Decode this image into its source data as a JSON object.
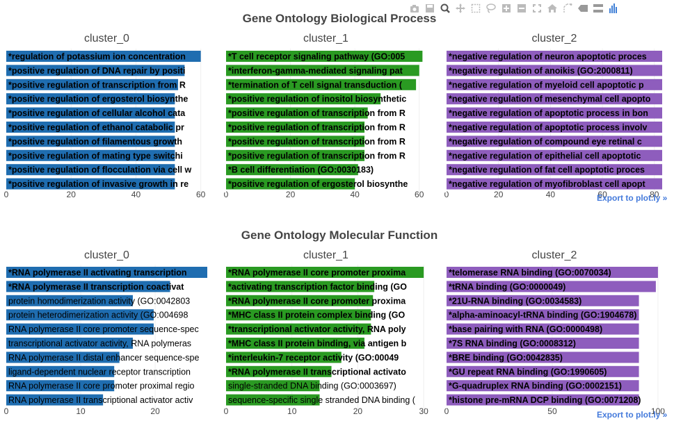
{
  "modebar": {
    "buttons": [
      "camera-icon",
      "save-icon",
      "zoom-icon",
      "pan-icon",
      "box-select-icon",
      "lasso-icon",
      "zoom-in-icon",
      "zoom-out-icon",
      "autoscale-icon",
      "home-icon",
      "spike-lines-icon",
      "hover-closest-icon",
      "hover-compare-icon",
      "plotly-logo-icon"
    ]
  },
  "export_label": "Export to plot.ly »",
  "colors": {
    "cluster_0": "#1f6db0",
    "cluster_1": "#2a9a22",
    "cluster_2": "#8e5dbd",
    "title": "#444444",
    "tick": "#444444"
  },
  "chart_data": [
    {
      "type": "bar",
      "orientation": "horizontal",
      "title": "Gene Ontology Biological Process",
      "panels": [
        {
          "name": "cluster_0",
          "xlim": [
            0,
            62
          ],
          "xticks": [
            0,
            20,
            40,
            60
          ],
          "xtick_labels": [
            "0",
            "20",
            "40",
            "60"
          ],
          "bars": [
            {
              "label": "*regulation of potassium ion concentration",
              "value": 60
            },
            {
              "label": "*positive regulation of DNA repair by positi",
              "value": 55
            },
            {
              "label": "*positive regulation of transcription from R",
              "value": 53
            },
            {
              "label": "*positive regulation of ergosterol biosynthe",
              "value": 52
            },
            {
              "label": "*positive regulation of cellular alcohol cata",
              "value": 52
            },
            {
              "label": "*positive regulation of ethanol catabolic pr",
              "value": 52
            },
            {
              "label": "*positive regulation of filamentous growth",
              "value": 52
            },
            {
              "label": "*positive regulation of mating type switchi",
              "value": 52
            },
            {
              "label": "*positive regulation of flocculation via cell w",
              "value": 52
            },
            {
              "label": "*positive regulation of invasive growth in re",
              "value": 52
            }
          ]
        },
        {
          "name": "cluster_1",
          "xlim": [
            0,
            62
          ],
          "xticks": [
            0,
            20,
            40,
            60
          ],
          "xtick_labels": [
            "0",
            "20",
            "40",
            "60"
          ],
          "bars": [
            {
              "label": "*T cell receptor signaling pathway (GO:005",
              "value": 61
            },
            {
              "label": "*interferon-gamma-mediated signaling pat",
              "value": 60
            },
            {
              "label": "*termination of T cell signal transduction (",
              "value": 59
            },
            {
              "label": "*positive regulation of inositol biosynthetic",
              "value": 48
            },
            {
              "label": "*positive regulation of transcription from R",
              "value": 44
            },
            {
              "label": "*positive regulation of transcription from R",
              "value": 43
            },
            {
              "label": "*positive regulation of transcription from R",
              "value": 43
            },
            {
              "label": "*positive regulation of transcription from R",
              "value": 43
            },
            {
              "label": "*B cell differentiation (GO:0030183)",
              "value": 41
            },
            {
              "label": "*positive regulation of ergosterol biosynthe",
              "value": 40
            }
          ]
        },
        {
          "name": "cluster_2",
          "xlim": [
            0,
            83
          ],
          "xticks": [
            0,
            20,
            40,
            60,
            80
          ],
          "xtick_labels": [
            "0",
            "20",
            "40",
            "60",
            "80"
          ],
          "bars": [
            {
              "label": "*negative regulation of neuron apoptotic proces",
              "value": 83
            },
            {
              "label": "*negative regulation of anoikis (GO:2000811)",
              "value": 83
            },
            {
              "label": "*negative regulation of myeloid cell apoptotic p",
              "value": 83
            },
            {
              "label": "*negative regulation of mesenchymal cell apopto",
              "value": 83
            },
            {
              "label": "*negative regulation of apoptotic process in bon",
              "value": 83
            },
            {
              "label": "*negative regulation of apoptotic process involv",
              "value": 83
            },
            {
              "label": "*negative regulation of compound eye retinal c",
              "value": 83
            },
            {
              "label": "*negative regulation of epithelial cell apoptotic",
              "value": 83
            },
            {
              "label": "*negative regulation of fat cell apoptotic proces",
              "value": 83
            },
            {
              "label": "*negative regulation of myofibroblast cell apopt",
              "value": 83
            }
          ]
        }
      ]
    },
    {
      "type": "bar",
      "orientation": "horizontal",
      "title": "Gene Ontology Molecular Function",
      "panels": [
        {
          "name": "cluster_0",
          "xlim": [
            0,
            27
          ],
          "xticks": [
            0,
            10,
            20
          ],
          "xtick_labels": [
            "0",
            "10",
            "20"
          ],
          "bars": [
            {
              "label": "*RNA polymerase II activating transcription",
              "value": 27.5,
              "bold": true
            },
            {
              "label": "*RNA polymerase II transcription coactivat",
              "value": 22,
              "bold": true
            },
            {
              "label": "protein homodimerization activity (GO:0042803",
              "value": 17,
              "bold": false
            },
            {
              "label": "protein heterodimerization activity (GO:004698",
              "value": 19.8,
              "bold": false
            },
            {
              "label": "RNA polymerase II core promoter sequence-spec",
              "value": 19.8,
              "bold": false
            },
            {
              "label": "transcriptional activator activity, RNA polymeras",
              "value": 17,
              "bold": false
            },
            {
              "label": "RNA polymerase II distal enhancer sequence-spe",
              "value": 15.2,
              "bold": false
            },
            {
              "label": "ligand-dependent nuclear receptor transcription",
              "value": 14.5,
              "bold": false
            },
            {
              "label": "RNA polymerase II core promoter proximal regio",
              "value": 14.5,
              "bold": false
            },
            {
              "label": "RNA polymerase II transcriptional activator activ",
              "value": 13,
              "bold": false
            }
          ]
        },
        {
          "name": "cluster_1",
          "xlim": [
            0,
            30.3
          ],
          "xticks": [
            0,
            10,
            20,
            30
          ],
          "xtick_labels": [
            "0",
            "10",
            "20",
            "30"
          ],
          "bars": [
            {
              "label": "*RNA polymerase II core promoter proxima",
              "value": 30,
              "bold": true
            },
            {
              "label": "*activating transcription factor binding (GO",
              "value": 22.5,
              "bold": true
            },
            {
              "label": "*RNA polymerase II core promoter proxima",
              "value": 22.3,
              "bold": true
            },
            {
              "label": "*MHC class II protein complex binding (GO",
              "value": 22,
              "bold": true
            },
            {
              "label": "*transcriptional activator activity, RNA poly",
              "value": 22,
              "bold": true
            },
            {
              "label": "*MHC class II protein binding, via antigen b",
              "value": 21,
              "bold": true
            },
            {
              "label": "*interleukin-7 receptor activity (GO:00049",
              "value": 17.5,
              "bold": true
            },
            {
              "label": "*RNA polymerase II transcriptional activato",
              "value": 16,
              "bold": true
            },
            {
              "label": "single-stranded DNA binding (GO:0003697)",
              "value": 14.2,
              "bold": false
            },
            {
              "label": "sequence-specific single stranded DNA binding (",
              "value": 14.2,
              "bold": false
            }
          ]
        },
        {
          "name": "cluster_2",
          "xlim": [
            0,
            102
          ],
          "xticks": [
            0,
            50,
            100
          ],
          "xtick_labels": [
            "0",
            "50",
            "100"
          ],
          "bars": [
            {
              "label": "*telomerase RNA binding (GO:0070034)",
              "value": 100,
              "bold": true
            },
            {
              "label": "*tRNA binding (GO:0000049)",
              "value": 99,
              "bold": true
            },
            {
              "label": "*21U-RNA binding (GO:0034583)",
              "value": 91,
              "bold": true
            },
            {
              "label": "*alpha-aminoacyl-tRNA binding (GO:1904678)",
              "value": 91,
              "bold": true
            },
            {
              "label": "*base pairing with RNA (GO:0000498)",
              "value": 91,
              "bold": true
            },
            {
              "label": "*7S RNA binding (GO:0008312)",
              "value": 91,
              "bold": true
            },
            {
              "label": "*BRE binding (GO:0042835)",
              "value": 91,
              "bold": true
            },
            {
              "label": "*GU repeat RNA binding (GO:1990605)",
              "value": 91,
              "bold": true
            },
            {
              "label": "*G-quadruplex RNA binding (GO:0002151)",
              "value": 91,
              "bold": true
            },
            {
              "label": "*histone pre-mRNA DCP binding (GO:0071208)",
              "value": 91,
              "bold": true
            }
          ]
        }
      ]
    }
  ]
}
